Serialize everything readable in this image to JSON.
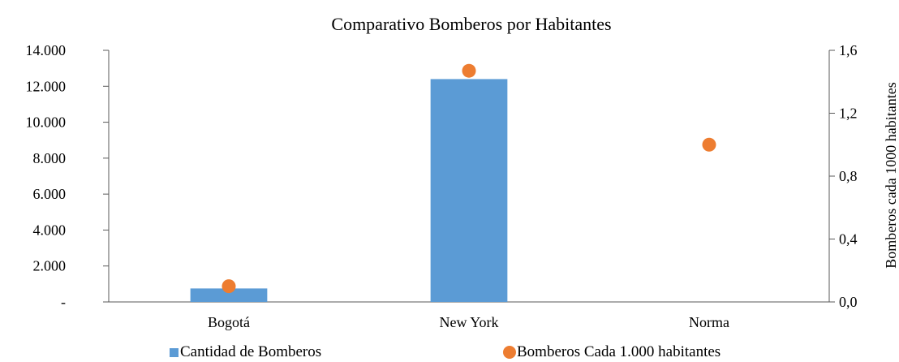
{
  "chart_data": {
    "type": "bar",
    "title": "Comparativo Bomberos por Habitantes",
    "categories": [
      "Bogotá",
      "New York",
      "Norma"
    ],
    "series": [
      {
        "name": "Cantidad de Bomberos",
        "kind": "bar",
        "axis": "left",
        "color": "#5B9BD5",
        "values": [
          750,
          12400,
          null
        ]
      },
      {
        "name": "Bomberos Cada 1.000 habitantes",
        "kind": "scatter",
        "axis": "right",
        "color": "#ED7D31",
        "values": [
          0.1,
          1.47,
          1.0
        ]
      }
    ],
    "y_left": {
      "label": "",
      "ylim": [
        0,
        14000
      ],
      "tick_values": [
        0,
        2000,
        4000,
        6000,
        8000,
        10000,
        12000,
        14000
      ],
      "tick_labels": [
        "-",
        "2.000",
        "4.000",
        "6.000",
        "8.000",
        "10.000",
        "12.000",
        "14.000"
      ]
    },
    "y_right": {
      "label": "Bomberos cada 1000 habitantes",
      "ylim": [
        0,
        1.6
      ],
      "tick_values": [
        0,
        0.4,
        0.8,
        1.2,
        1.6
      ],
      "tick_labels": [
        "0,0",
        "0,4",
        "0,8",
        "1,2",
        "1,6"
      ]
    },
    "grid": false,
    "legend_position": "bottom"
  }
}
